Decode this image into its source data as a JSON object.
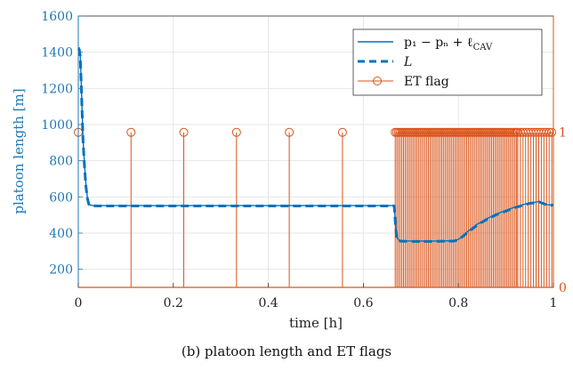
{
  "caption": "(b) platoon length and ET flags",
  "chart_data": {
    "type": "line",
    "xlabel": "time [h]",
    "ylabel_left": "platoon length [m]",
    "xlim": [
      0,
      1
    ],
    "ylim_left": [
      100,
      1600
    ],
    "ylim_right": [
      0,
      1.75
    ],
    "x_ticks": [
      0,
      0.2,
      0.4,
      0.6,
      0.8,
      1
    ],
    "x_tick_labels": [
      "0",
      "0.2",
      "0.4",
      "0.6",
      "0.8",
      "1"
    ],
    "y_left_ticks": [
      200,
      400,
      600,
      800,
      1000,
      1200,
      1400,
      1600
    ],
    "y_left_tick_labels": [
      "200",
      "400",
      "600",
      "800",
      "1000",
      "1200",
      "1400",
      "1600"
    ],
    "y_right_ticks": [
      0,
      1
    ],
    "y_right_tick_labels": [
      "0",
      "1"
    ],
    "grid": true,
    "legend_position": "top-right",
    "colors": {
      "left_axis": "#1f77b4",
      "series_main": "#0072bd",
      "right_axis": "#d95319",
      "grid": "#e6e6e6"
    },
    "series": [
      {
        "legend_label": "p₁ − pₙ + ℓ",
        "legend_label_sub": "CAV",
        "style": "solid",
        "axis": "left",
        "x": [
          0,
          0.002,
          0.004,
          0.006,
          0.008,
          0.01,
          0.013,
          0.016,
          0.019,
          0.022,
          0.025,
          0.03,
          0.04,
          0.2,
          0.4,
          0.6,
          0.665,
          0.667,
          0.67,
          0.675,
          0.68,
          0.7,
          0.75,
          0.79,
          0.8,
          0.82,
          0.84,
          0.86,
          0.88,
          0.9,
          0.92,
          0.94,
          0.95,
          0.96,
          0.97,
          0.98,
          0.99,
          1.0
        ],
        "y": [
          1420,
          1425,
          1390,
          1250,
          1080,
          920,
          780,
          670,
          600,
          565,
          555,
          553,
          552,
          552,
          552,
          552,
          552,
          470,
          380,
          360,
          357,
          356,
          356,
          358,
          365,
          410,
          450,
          480,
          505,
          525,
          545,
          560,
          568,
          570,
          575,
          565,
          555,
          558
        ]
      },
      {
        "legend_label": "L",
        "style": "dashed",
        "axis": "left",
        "x": [
          0,
          0.002,
          0.004,
          0.006,
          0.008,
          0.01,
          0.013,
          0.016,
          0.019,
          0.022,
          0.025,
          0.03,
          0.04,
          0.2,
          0.4,
          0.6,
          0.665,
          0.667,
          0.67,
          0.675,
          0.68,
          0.7,
          0.75,
          0.79,
          0.8,
          0.82,
          0.84,
          0.86,
          0.88,
          0.9,
          0.92,
          0.94,
          0.95,
          0.96,
          0.97,
          0.98,
          0.99,
          1.0
        ],
        "y": [
          1410,
          1415,
          1380,
          1240,
          1070,
          910,
          770,
          660,
          595,
          560,
          553,
          551,
          550,
          550,
          550,
          550,
          550,
          468,
          378,
          358,
          355,
          354,
          354,
          356,
          362,
          405,
          445,
          476,
          502,
          522,
          542,
          556,
          564,
          567,
          572,
          562,
          552,
          555
        ]
      },
      {
        "legend_label": "ET flag",
        "style": "stem",
        "axis": "right",
        "sparse_event_times": [
          0,
          0.111,
          0.222,
          0.333,
          0.444,
          0.556
        ],
        "dense_event_interval": [
          0.667,
          0.925
        ],
        "dense_event_step": 0.0035,
        "late_event_interval": [
          0.925,
          1.0
        ],
        "late_event_step": 0.0055,
        "value": 1
      }
    ]
  }
}
